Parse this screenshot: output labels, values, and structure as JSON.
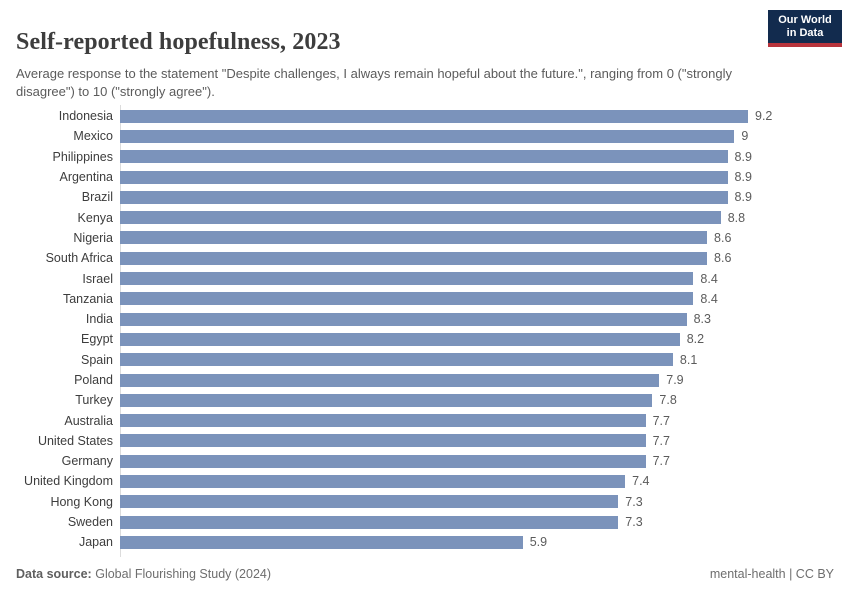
{
  "header": {
    "title": "Self-reported hopefulness, 2023",
    "subtitle": "Average response to the statement \"Despite challenges, I always remain hopeful about the future.\", ranging from 0 (\"strongly disagree\") to 10 (\"strongly agree\").",
    "logo": {
      "line1": "Our World",
      "line2": "in Data"
    }
  },
  "chart_data": {
    "type": "bar",
    "orientation": "horizontal",
    "title": "Self-reported hopefulness, 2023",
    "xlabel": "",
    "ylabel": "",
    "xlim": [
      0,
      9.2
    ],
    "grid": false,
    "bar_color": "#7b93bb",
    "categories": [
      "Indonesia",
      "Mexico",
      "Philippines",
      "Argentina",
      "Brazil",
      "Kenya",
      "Nigeria",
      "South Africa",
      "Israel",
      "Tanzania",
      "India",
      "Egypt",
      "Spain",
      "Poland",
      "Turkey",
      "Australia",
      "United States",
      "Germany",
      "United Kingdom",
      "Hong Kong",
      "Sweden",
      "Japan"
    ],
    "values": [
      9.2,
      9,
      8.9,
      8.9,
      8.9,
      8.8,
      8.6,
      8.6,
      8.4,
      8.4,
      8.3,
      8.2,
      8.1,
      7.9,
      7.8,
      7.7,
      7.7,
      7.7,
      7.4,
      7.3,
      7.3,
      5.9
    ],
    "value_labels": [
      "9.2",
      "9",
      "8.9",
      "8.9",
      "8.9",
      "8.8",
      "8.6",
      "8.6",
      "8.4",
      "8.4",
      "8.3",
      "8.2",
      "8.1",
      "7.9",
      "7.8",
      "7.7",
      "7.7",
      "7.7",
      "7.4",
      "7.3",
      "7.3",
      "5.9"
    ]
  },
  "footer": {
    "datasource_label": "Data source:",
    "datasource_value": "Global Flourishing Study (2024)",
    "right_text": "mental-health | CC BY"
  },
  "colors": {
    "bar": "#7b93bb",
    "title_text": "#3d3d3d",
    "subtitle_text": "#5b5b5b",
    "value_text": "#5b5b5b",
    "logo_background": "#122b4e",
    "logo_stripe": "#b8343c",
    "axis_line": "#dcdcdc"
  }
}
